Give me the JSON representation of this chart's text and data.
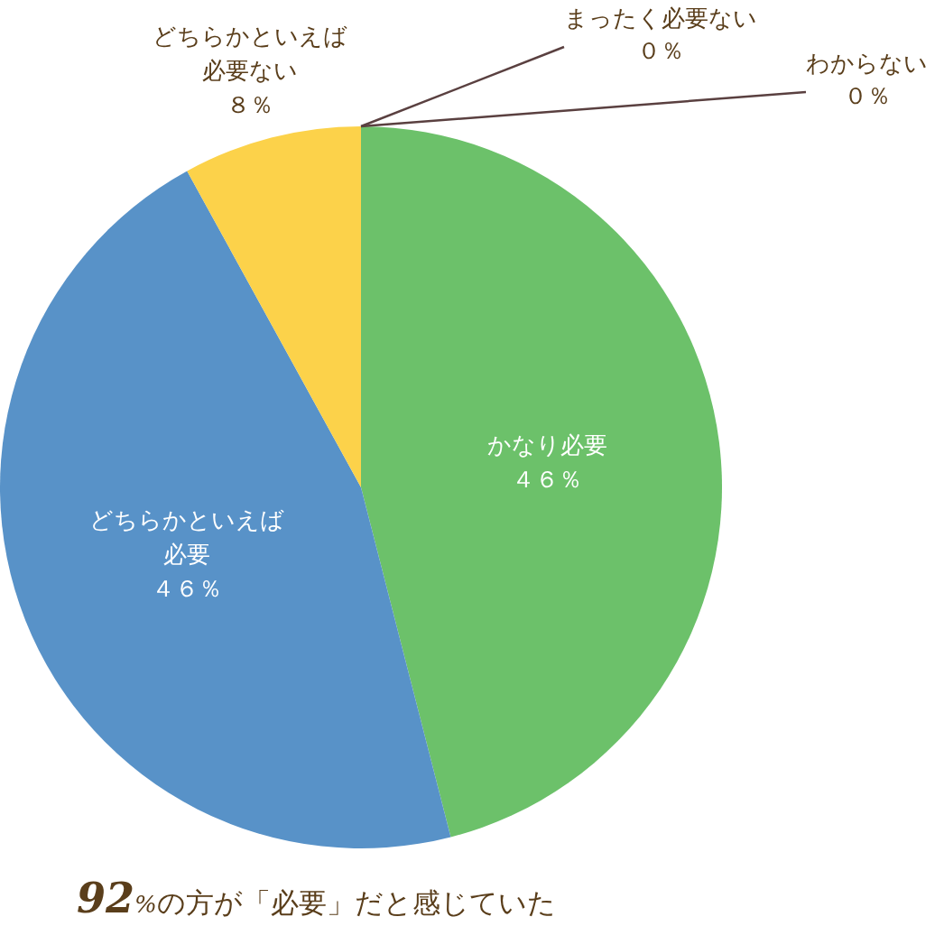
{
  "chart_data": {
    "type": "pie",
    "categories": [
      "かなり必要",
      "どちらかといえば必要",
      "どちらかといえば必要ない",
      "まったく必要ない",
      "わからない"
    ],
    "values": [
      46,
      46,
      8,
      0,
      0
    ],
    "colors": [
      "#6cc16a",
      "#5892c8",
      "#fcd24a",
      "#e08a3c",
      "#999999"
    ],
    "value_labels": [
      "４６％",
      "４６％",
      "８％",
      "０％",
      "０％"
    ],
    "legend": false,
    "annotations": [
      "92%の方が「必要」だと感じていた"
    ]
  }
}
